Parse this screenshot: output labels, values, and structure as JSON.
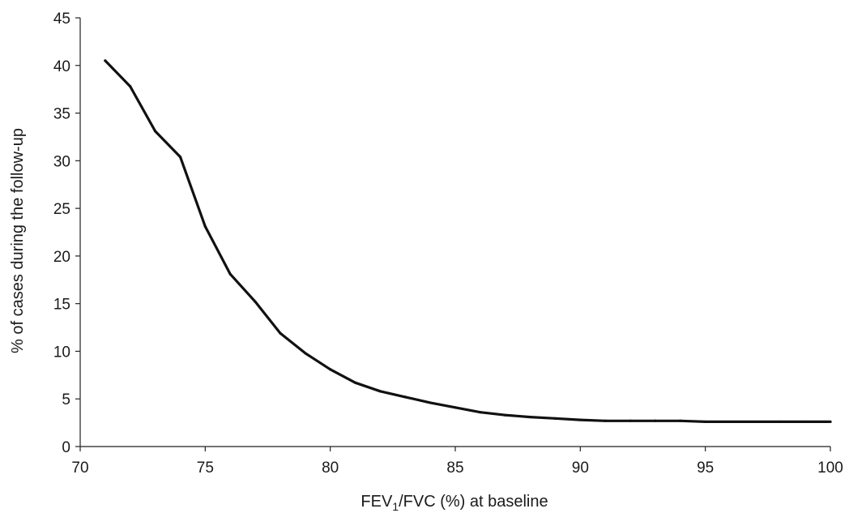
{
  "chart_data": {
    "type": "line",
    "title": "",
    "xlabel_parts": [
      "FEV",
      "1",
      "/FVC (%) at baseline"
    ],
    "ylabel": "% of cases during the follow-up",
    "xlim": [
      70,
      100
    ],
    "ylim": [
      0,
      45
    ],
    "xticks": [
      70,
      75,
      80,
      85,
      90,
      95,
      100
    ],
    "yticks": [
      0,
      5,
      10,
      15,
      20,
      25,
      30,
      35,
      40,
      45
    ],
    "grid": false,
    "legend": "none",
    "colors": {
      "line": "#111111",
      "axis": "#222222"
    },
    "series": [
      {
        "x": [
          71,
          72,
          73,
          74,
          75,
          76,
          77,
          78,
          79,
          80,
          81,
          82,
          83,
          84,
          85,
          86,
          87,
          88,
          89,
          90,
          91,
          92,
          93,
          94,
          95,
          96,
          97,
          98,
          99,
          100
        ],
        "y": [
          40.5,
          37.8,
          33.1,
          30.4,
          23.1,
          18.1,
          15.2,
          11.9,
          9.8,
          8.1,
          6.7,
          5.8,
          5.2,
          4.6,
          4.1,
          3.6,
          3.3,
          3.1,
          2.95,
          2.8,
          2.7,
          2.7,
          2.7,
          2.7,
          2.6,
          2.6,
          2.6,
          2.6,
          2.6,
          2.6
        ]
      }
    ]
  }
}
